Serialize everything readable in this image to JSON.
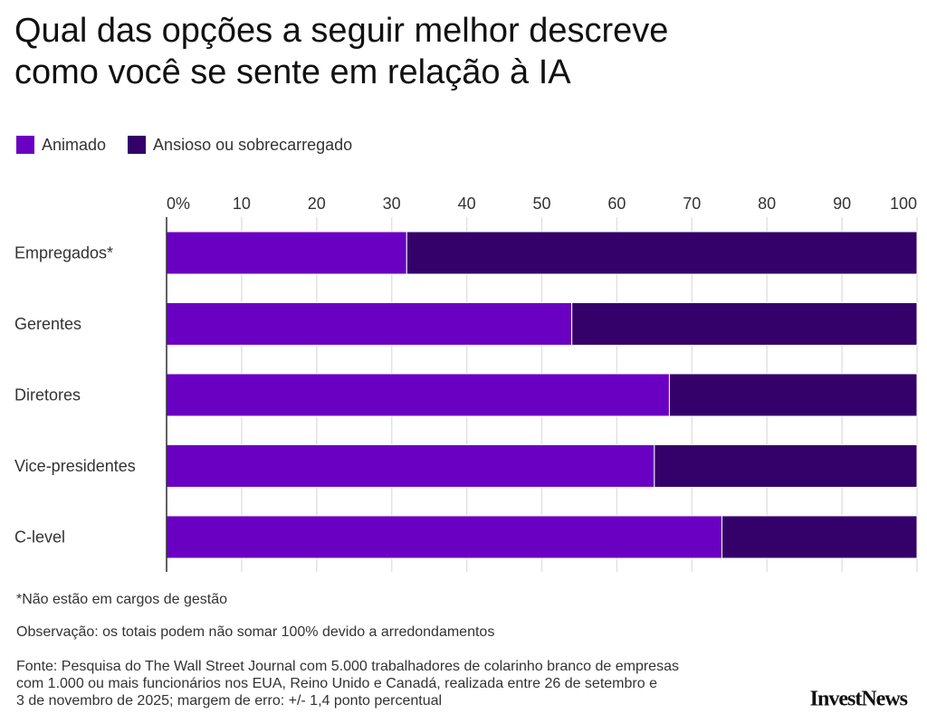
{
  "chart_data": {
    "type": "stacked_barh",
    "title": [
      "Qual das opções a seguir melhor descreve",
      "como você se sente em relação à IA"
    ],
    "categories": [
      "Empregados*",
      "Gerentes",
      "Diretores",
      "Vice-presidentes",
      "C-level"
    ],
    "series": [
      {
        "name": "Animado",
        "color": "#6a00c2",
        "values": [
          32,
          54,
          67,
          65,
          74
        ]
      },
      {
        "name": "Ansioso ou sobrecarregado",
        "color": "#34006a",
        "values": [
          68,
          46,
          33,
          35,
          26
        ]
      }
    ],
    "xlim": [
      0,
      100
    ],
    "xticks": [
      {
        "value": 0,
        "label": "0%"
      },
      10,
      20,
      30,
      40,
      50,
      60,
      70,
      80,
      90,
      100
    ],
    "grid": true,
    "notes": [
      "*Não estão em cargos de gestão",
      "Observação: os totais podem não somar 100% devido a arredondamentos"
    ],
    "source": [
      "Fonte: Pesquisa do The Wall Street Journal com 5.000 trabalhadores de colarinho branco de empresas",
      "com 1.000 ou mais funcionários nos EUA, Reino Unido e Canadá, realizada entre 26 de setembro e",
      "3 de novembro de 2025; margem de erro: +/- 1,4 ponto percentual"
    ],
    "logo": "InvestNews"
  }
}
